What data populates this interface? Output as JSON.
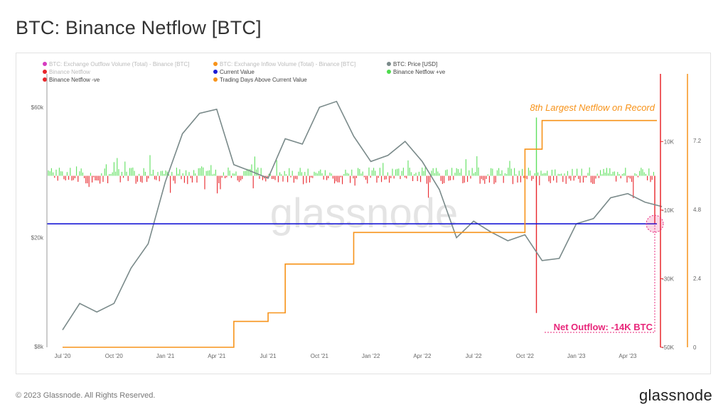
{
  "page": {
    "title": "BTC: Binance Netflow [BTC]",
    "footer": "© 2023 Glassnode. All Rights Reserved.",
    "brand": "glassnode",
    "watermark": "glassnode"
  },
  "legend": [
    {
      "label": "BTC: Exchange Outflow Volume (Total) - Binance [BTC]",
      "color": "#d63cc0",
      "muted": true
    },
    {
      "label": "BTC: Exchange Inflow Volume (Total) - Binance [BTC]",
      "color": "#f7931a",
      "muted": true
    },
    {
      "label": "BTC: Price [USD]",
      "color": "#7a8a8a",
      "muted": false
    },
    {
      "label": "Binance Netflow",
      "color": "#e8262b",
      "muted": true
    },
    {
      "label": "Current Value",
      "color": "#1b1bd6",
      "muted": false
    },
    {
      "label": "Binance Netflow +ve",
      "color": "#4ddb4d",
      "muted": false
    },
    {
      "label": "Binance Netflow -ve",
      "color": "#e8262b",
      "muted": false
    },
    {
      "label": "Trading Days Above Current Value",
      "color": "#f7931a",
      "muted": false
    }
  ],
  "annotations": {
    "record": "8th Largest Netflow on Record",
    "outflow": "Net Outflow: -14K BTC"
  },
  "chart_data": {
    "type": "line",
    "x_ticks": [
      "Jul '20",
      "Oct '20",
      "Jan '21",
      "Apr '21",
      "Jul '21",
      "Oct '21",
      "Jan '22",
      "Apr '22",
      "Jul '22",
      "Oct '22",
      "Jan '23",
      "Apr '23"
    ],
    "y_left": {
      "scale": "log",
      "ticks": [
        "$8k",
        "$20k",
        "$60k"
      ],
      "tick_values": [
        8000,
        20000,
        60000
      ]
    },
    "y_netflow": {
      "ticks": [
        "10K",
        "-10K",
        "-30K",
        "-50K"
      ],
      "tick_values": [
        10000,
        -10000,
        -30000,
        -50000
      ],
      "range": [
        -50000,
        20000
      ]
    },
    "y_days": {
      "ticks": [
        "7.2",
        "4.8",
        "2.4",
        "0"
      ],
      "tick_values": [
        7.2,
        4.8,
        2.4,
        0
      ],
      "range": [
        0,
        9.6
      ]
    },
    "price": {
      "name": "BTC: Price [USD]",
      "points": [
        [
          "Jul '20",
          9200
        ],
        [
          "Aug '20",
          11500
        ],
        [
          "Sep '20",
          10700
        ],
        [
          "Oct '20",
          11500
        ],
        [
          "Nov '20",
          15500
        ],
        [
          "Dec '20",
          19000
        ],
        [
          "Jan '21",
          32000
        ],
        [
          "Feb '21",
          48000
        ],
        [
          "Mar '21",
          57000
        ],
        [
          "Apr '21",
          59000
        ],
        [
          "May '21",
          37000
        ],
        [
          "Jun '21",
          35000
        ],
        [
          "Jul '21",
          33000
        ],
        [
          "Aug '21",
          46000
        ],
        [
          "Sep '21",
          44000
        ],
        [
          "Oct '21",
          60000
        ],
        [
          "Nov '21",
          63000
        ],
        [
          "Dec '21",
          47000
        ],
        [
          "Jan '22",
          38000
        ],
        [
          "Feb '22",
          40000
        ],
        [
          "Mar '22",
          45000
        ],
        [
          "Apr '22",
          38000
        ],
        [
          "May '22",
          30000
        ],
        [
          "Jun '22",
          20000
        ],
        [
          "Jul '22",
          23000
        ],
        [
          "Aug '22",
          21000
        ],
        [
          "Sep '22",
          19500
        ],
        [
          "Oct '22",
          20500
        ],
        [
          "Nov '22",
          16500
        ],
        [
          "Dec '22",
          16800
        ],
        [
          "Jan '23",
          22500
        ],
        [
          "Feb '23",
          23500
        ],
        [
          "Mar '23",
          28000
        ],
        [
          "Apr '23",
          29000
        ],
        [
          "May '23",
          27000
        ],
        [
          "Jun '23",
          26000
        ]
      ]
    },
    "current_value": {
      "name": "Current Value",
      "value": -14000
    },
    "trading_days": {
      "name": "Trading Days Above Current Value",
      "steps": [
        [
          "Jul '20",
          0
        ],
        [
          "May '21",
          0.9
        ],
        [
          "Jul '21",
          1.2
        ],
        [
          "Aug '21",
          2.9
        ],
        [
          "Dec '21",
          4.0
        ],
        [
          "Oct '22",
          6.9
        ],
        [
          "Nov '22",
          7.9
        ]
      ]
    },
    "netflow_extremes": [
      {
        "x": "Nov '22",
        "value": -40000
      },
      {
        "x": "Nov '22",
        "value": 17000
      },
      {
        "x": "Jun '23",
        "value": -14000
      }
    ]
  }
}
